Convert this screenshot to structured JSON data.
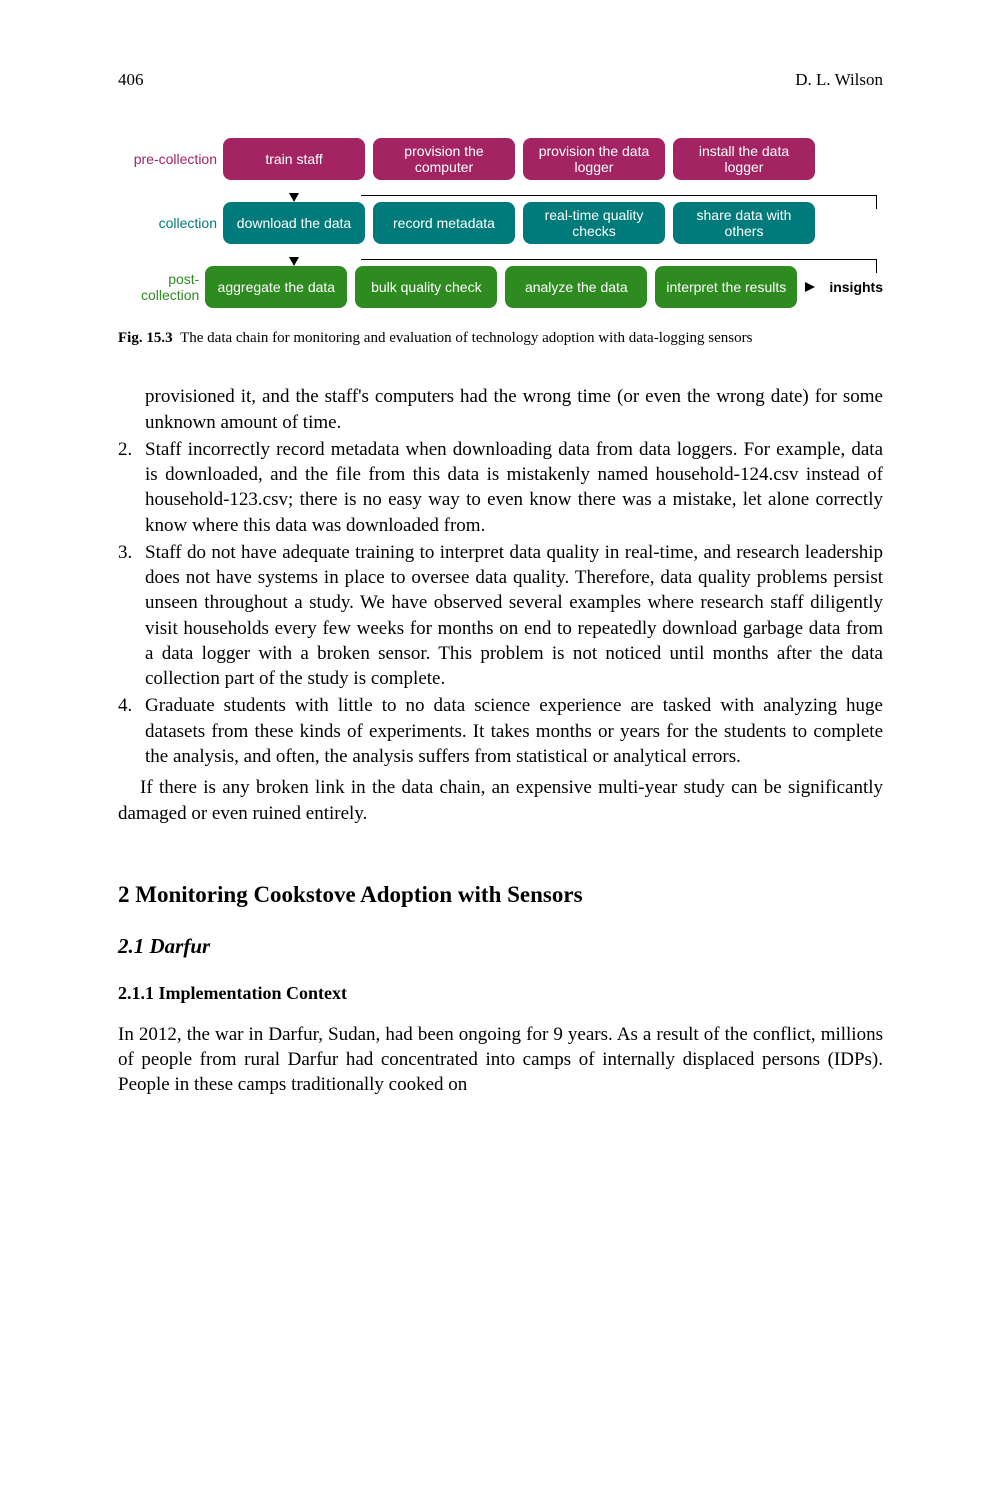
{
  "header": {
    "page_number": "406",
    "author": "D. L. Wilson"
  },
  "figure": {
    "rows": [
      {
        "label": "pre-collection",
        "label_color_class": "purple",
        "box_class": "purple-box",
        "boxes": [
          "train staff",
          "provision the computer",
          "provision the data logger",
          "install the data logger"
        ]
      },
      {
        "label": "collection",
        "label_color_class": "teal",
        "box_class": "teal-box",
        "boxes": [
          "download the data",
          "record metadata",
          "real-time quality checks",
          "share data with others"
        ]
      },
      {
        "label": "post-collection",
        "label_color_class": "green",
        "box_class": "green-box",
        "boxes": [
          "aggregate the data",
          "bulk quality check",
          "analyze the data",
          "interpret the results"
        ]
      }
    ],
    "insights_label": "insights",
    "caption_label": "Fig. 15.3",
    "caption_text": "The data chain for monitoring and evaluation of technology adoption with data-logging sensors"
  },
  "continuation_para": "provisioned it, and the staff's computers had the wrong time (or even the wrong date) for some unknown amount of time.",
  "list_items": [
    {
      "n": "2.",
      "t": "Staff incorrectly record metadata when downloading data from data loggers. For example, data is downloaded, and the file from this data is mistakenly named household-124.csv instead of household-123.csv; there is no easy way to even know there was a mistake, let alone correctly know where this data was downloaded from."
    },
    {
      "n": "3.",
      "t": "Staff do not have adequate training to interpret data quality in real-time, and research leadership does not have systems in place to oversee data quality. Therefore, data quality problems persist unseen throughout a study. We have observed several examples where research staff diligently visit households every few weeks for months on end to repeatedly download garbage data from a data logger with a broken sensor. This problem is not noticed until months after the data collection part of the study is complete."
    },
    {
      "n": "4.",
      "t": "Graduate students with little to no data science experience are tasked with analyzing huge datasets from these kinds of experiments. It takes months or years for the students to complete the analysis, and often, the analysis suffers from statistical or analytical errors."
    }
  ],
  "closing_para": "If there is any broken link in the data chain, an expensive multi-year study can be significantly damaged or even ruined entirely.",
  "section": {
    "num_title": "2   Monitoring Cookstove Adoption with Sensors",
    "sub": "2.1   Darfur",
    "subsub": "2.1.1   Implementation Context",
    "para": "In 2012, the war in Darfur, Sudan, had been ongoing for 9 years. As a result of the conflict, millions of people from rural Darfur had concentrated into camps of internally displaced persons (IDPs). People in these camps traditionally cooked on"
  }
}
